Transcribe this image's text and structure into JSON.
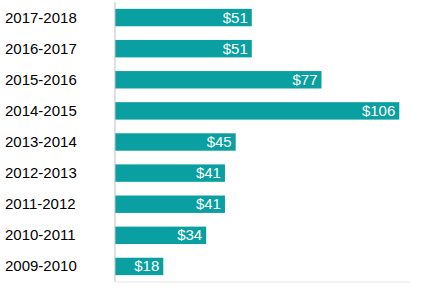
{
  "chart_data": {
    "type": "bar",
    "orientation": "horizontal",
    "categories": [
      "2017-2018",
      "2016-2017",
      "2015-2016",
      "2014-2015",
      "2013-2014",
      "2012-2013",
      "2011-2012",
      "2010-2011",
      "2009-2010"
    ],
    "values": [
      51,
      51,
      77,
      106,
      45,
      41,
      41,
      34,
      18
    ],
    "value_labels": [
      "$51",
      "$51",
      "$77",
      "$106",
      "$45",
      "$41",
      "$41",
      "$34",
      "$18"
    ],
    "color": "#0a9fa0",
    "xlim": [
      0,
      110
    ],
    "data_labels": true,
    "tick_labels": "y",
    "grid": false
  }
}
